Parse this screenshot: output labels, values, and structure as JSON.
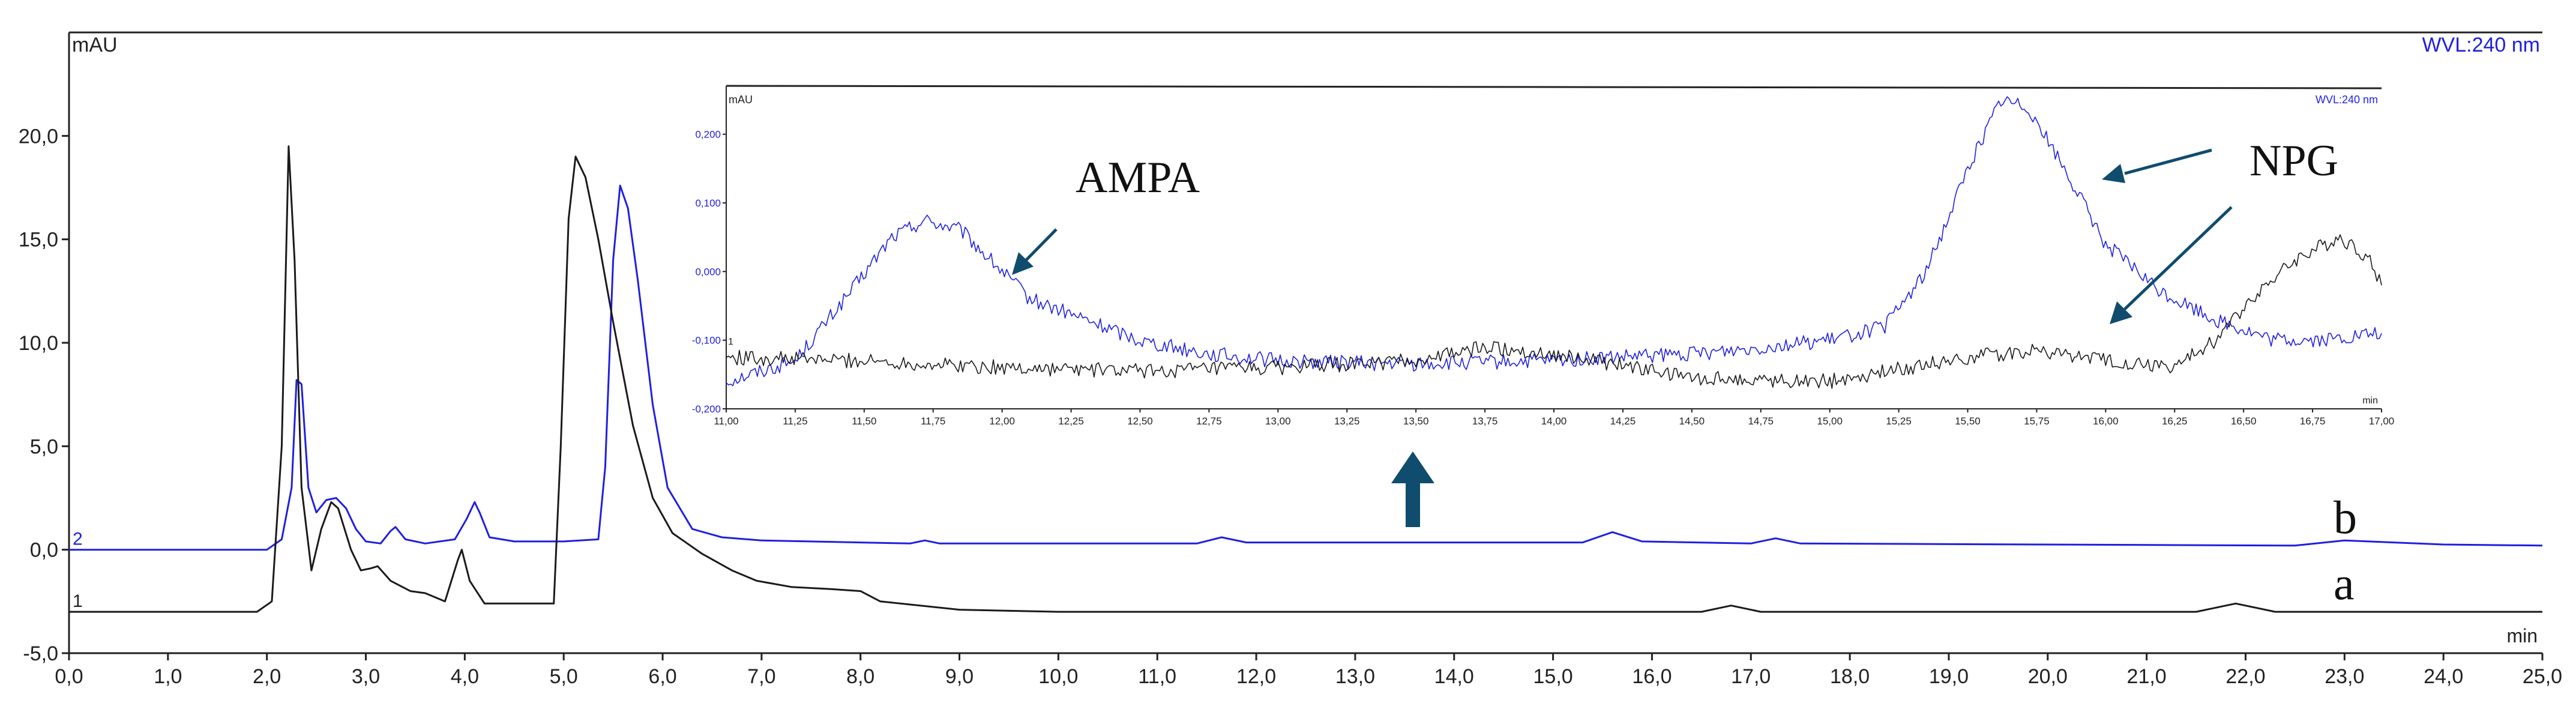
{
  "chart_data": [
    {
      "type": "line",
      "ylabel": "mAU",
      "xlabel": "min",
      "wavelength_label": "WVL:240 nm",
      "xlim": [
        0,
        25
      ],
      "ylim": [
        -5,
        25
      ],
      "x_ticks": [
        "0,0",
        "1,0",
        "2,0",
        "3,0",
        "4,0",
        "5,0",
        "6,0",
        "7,0",
        "8,0",
        "9,0",
        "10,0",
        "11,0",
        "12,0",
        "13,0",
        "14,0",
        "15,0",
        "16,0",
        "17,0",
        "18,0",
        "19,0",
        "20,0",
        "21,0",
        "22,0",
        "23,0",
        "24,0",
        "25,0"
      ],
      "x_tick_values": [
        0,
        1,
        2,
        3,
        4,
        5,
        6,
        7,
        8,
        9,
        10,
        11,
        12,
        13,
        14,
        15,
        16,
        17,
        18,
        19,
        20,
        21,
        22,
        23,
        24,
        25
      ],
      "y_ticks": [
        "-5,0",
        "0,0",
        "5,0",
        "10,0",
        "15,0",
        "20,0"
      ],
      "y_tick_values": [
        -5,
        0,
        5,
        10,
        15,
        20
      ],
      "series": [
        {
          "name": "b",
          "trace_number": "2",
          "color": "#1f1fe0",
          "points": [
            [
              0,
              0
            ],
            [
              2.0,
              0.0
            ],
            [
              2.15,
              0.5
            ],
            [
              2.25,
              3.0
            ],
            [
              2.3,
              8.2
            ],
            [
              2.35,
              8.0
            ],
            [
              2.42,
              3.0
            ],
            [
              2.5,
              1.8
            ],
            [
              2.6,
              2.4
            ],
            [
              2.7,
              2.5
            ],
            [
              2.8,
              2.0
            ],
            [
              2.9,
              1.0
            ],
            [
              3.0,
              0.4
            ],
            [
              3.15,
              0.3
            ],
            [
              3.25,
              0.9
            ],
            [
              3.3,
              1.1
            ],
            [
              3.4,
              0.5
            ],
            [
              3.6,
              0.3
            ],
            [
              3.9,
              0.5
            ],
            [
              4.02,
              1.5
            ],
            [
              4.1,
              2.3
            ],
            [
              4.15,
              1.8
            ],
            [
              4.25,
              0.6
            ],
            [
              4.5,
              0.4
            ],
            [
              5.0,
              0.4
            ],
            [
              5.35,
              0.5
            ],
            [
              5.42,
              4.0
            ],
            [
              5.5,
              14.0
            ],
            [
              5.57,
              17.6
            ],
            [
              5.65,
              16.5
            ],
            [
              5.75,
              13.0
            ],
            [
              5.9,
              7.0
            ],
            [
              6.05,
              3.0
            ],
            [
              6.3,
              1.0
            ],
            [
              6.6,
              0.6
            ],
            [
              7.0,
              0.45
            ],
            [
              8.0,
              0.35
            ],
            [
              8.5,
              0.3
            ],
            [
              8.65,
              0.45
            ],
            [
              8.8,
              0.3
            ],
            [
              11.4,
              0.3
            ],
            [
              11.65,
              0.6
            ],
            [
              11.9,
              0.35
            ],
            [
              15.3,
              0.35
            ],
            [
              15.6,
              0.85
            ],
            [
              15.9,
              0.4
            ],
            [
              17.0,
              0.3
            ],
            [
              17.25,
              0.55
            ],
            [
              17.5,
              0.3
            ],
            [
              22.5,
              0.2
            ],
            [
              23.0,
              0.45
            ],
            [
              23.5,
              0.35
            ],
            [
              24.0,
              0.25
            ],
            [
              25.0,
              0.2
            ]
          ]
        },
        {
          "name": "a",
          "trace_number": "1",
          "color": "#1a1a1a",
          "points": [
            [
              0,
              -3
            ],
            [
              1.9,
              -3.0
            ],
            [
              2.05,
              -2.5
            ],
            [
              2.15,
              5.0
            ],
            [
              2.22,
              19.5
            ],
            [
              2.28,
              14.0
            ],
            [
              2.35,
              3.0
            ],
            [
              2.45,
              -1.0
            ],
            [
              2.55,
              1.0
            ],
            [
              2.65,
              2.3
            ],
            [
              2.72,
              2.0
            ],
            [
              2.85,
              0.0
            ],
            [
              2.95,
              -1.0
            ],
            [
              3.05,
              -0.9
            ],
            [
              3.12,
              -0.8
            ],
            [
              3.25,
              -1.5
            ],
            [
              3.45,
              -2.0
            ],
            [
              3.6,
              -2.1
            ],
            [
              3.8,
              -2.5
            ],
            [
              3.93,
              -0.5
            ],
            [
              3.97,
              0.0
            ],
            [
              4.05,
              -1.5
            ],
            [
              4.2,
              -2.6
            ],
            [
              4.9,
              -2.6
            ],
            [
              4.97,
              5.0
            ],
            [
              5.05,
              16.0
            ],
            [
              5.12,
              19.0
            ],
            [
              5.22,
              18.0
            ],
            [
              5.35,
              15.0
            ],
            [
              5.5,
              11.0
            ],
            [
              5.7,
              6.0
            ],
            [
              5.9,
              2.5
            ],
            [
              6.1,
              0.8
            ],
            [
              6.4,
              -0.2
            ],
            [
              6.7,
              -1.0
            ],
            [
              6.95,
              -1.5
            ],
            [
              7.3,
              -1.8
            ],
            [
              7.7,
              -1.9
            ],
            [
              8.0,
              -2.0
            ],
            [
              8.2,
              -2.5
            ],
            [
              9.0,
              -2.9
            ],
            [
              10.0,
              -3.0
            ],
            [
              16.5,
              -3.0
            ],
            [
              16.8,
              -2.7
            ],
            [
              17.1,
              -3.0
            ],
            [
              21.5,
              -3.0
            ],
            [
              21.9,
              -2.6
            ],
            [
              22.3,
              -3.0
            ],
            [
              25.0,
              -3.0
            ]
          ]
        }
      ],
      "series_labels": [
        "b",
        "a"
      ],
      "arrow_at_x": "13,5"
    },
    {
      "type": "line",
      "role": "inset",
      "ylabel": "mAU",
      "xlabel": "min",
      "wavelength_label": "WVL:240 nm",
      "xlim": [
        11,
        17
      ],
      "ylim": [
        -0.2,
        0.26
      ],
      "x_ticks": [
        "11,00",
        "11,25",
        "11,50",
        "11,75",
        "12,00",
        "12,25",
        "12,50",
        "12,75",
        "13,00",
        "13,25",
        "13,50",
        "13,75",
        "14,00",
        "14,25",
        "14,50",
        "14,75",
        "15,00",
        "15,25",
        "15,50",
        "15,75",
        "16,00",
        "16,25",
        "16,50",
        "16,75",
        "17,00"
      ],
      "x_tick_values": [
        11,
        11.25,
        11.5,
        11.75,
        12,
        12.25,
        12.5,
        12.75,
        13,
        13.25,
        13.5,
        13.75,
        14,
        14.25,
        14.5,
        14.75,
        15,
        15.25,
        15.5,
        15.75,
        16,
        16.25,
        16.5,
        16.75,
        17
      ],
      "y_ticks": [
        "-0,200",
        "-0,100",
        "0,000",
        "0,100",
        "0,200"
      ],
      "y_tick_values": [
        -0.2,
        -0.1,
        0,
        0.1,
        0.2
      ],
      "y_tick_color": "#1f1fe0",
      "trace_marker": "1",
      "series": [
        {
          "name": "blue trace",
          "color": "#1f1fe0",
          "points": [
            [
              11.0,
              -0.16
            ],
            [
              11.25,
              -0.13
            ],
            [
              11.45,
              -0.03
            ],
            [
              11.6,
              0.05
            ],
            [
              11.72,
              0.075
            ],
            [
              11.85,
              0.06
            ],
            [
              12.0,
              0.0
            ],
            [
              12.1,
              -0.04
            ],
            [
              12.3,
              -0.07
            ],
            [
              12.5,
              -0.1
            ],
            [
              12.75,
              -0.12
            ],
            [
              13.0,
              -0.13
            ],
            [
              13.5,
              -0.135
            ],
            [
              14.0,
              -0.13
            ],
            [
              14.5,
              -0.12
            ],
            [
              15.0,
              -0.1
            ],
            [
              15.2,
              -0.08
            ],
            [
              15.35,
              0.0
            ],
            [
              15.5,
              0.15
            ],
            [
              15.62,
              0.25
            ],
            [
              15.72,
              0.24
            ],
            [
              15.85,
              0.15
            ],
            [
              16.0,
              0.04
            ],
            [
              16.2,
              -0.03
            ],
            [
              16.4,
              -0.07
            ],
            [
              16.6,
              -0.1
            ],
            [
              16.8,
              -0.1
            ],
            [
              17.0,
              -0.09
            ]
          ]
        },
        {
          "name": "black trace",
          "color": "#1a1a1a",
          "points": [
            [
              11.0,
              -0.125
            ],
            [
              11.5,
              -0.13
            ],
            [
              12.0,
              -0.14
            ],
            [
              12.5,
              -0.145
            ],
            [
              13.0,
              -0.14
            ],
            [
              13.5,
              -0.13
            ],
            [
              13.75,
              -0.11
            ],
            [
              14.0,
              -0.12
            ],
            [
              14.5,
              -0.155
            ],
            [
              15.0,
              -0.16
            ],
            [
              15.5,
              -0.125
            ],
            [
              15.75,
              -0.115
            ],
            [
              16.0,
              -0.13
            ],
            [
              16.25,
              -0.14
            ],
            [
              16.4,
              -0.1
            ],
            [
              16.55,
              -0.03
            ],
            [
              16.7,
              0.02
            ],
            [
              16.85,
              0.05
            ],
            [
              16.95,
              0.02
            ],
            [
              17.0,
              -0.02
            ]
          ]
        }
      ],
      "annotations": {
        "ampa": "AMPA",
        "npg": "NPG"
      }
    }
  ]
}
